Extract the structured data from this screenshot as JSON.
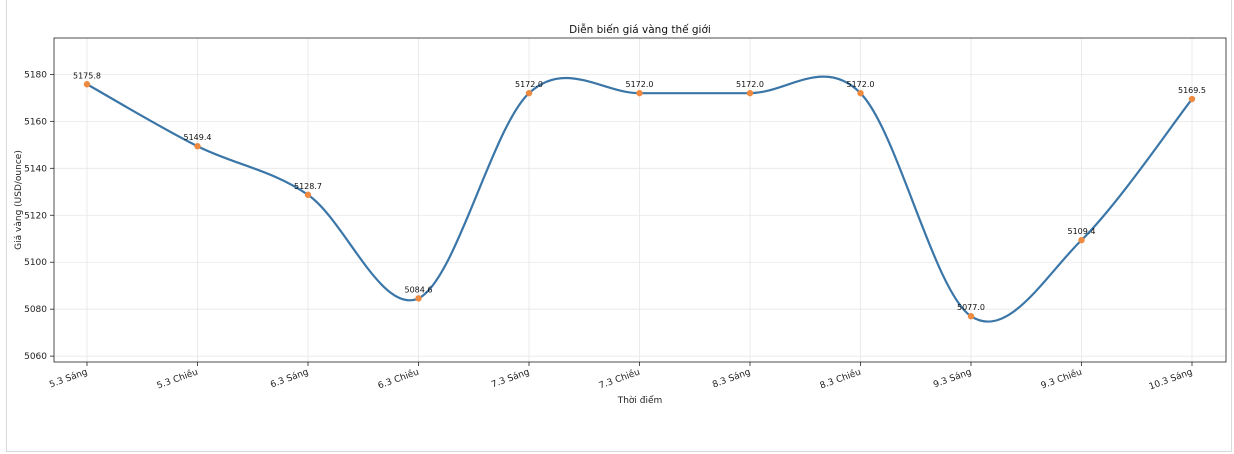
{
  "chart_data": {
    "type": "line",
    "title": "Diễn biến giá vàng thế giới",
    "xlabel": "Thời điểm",
    "ylabel": "Giá vàng (USD/ounce)",
    "categories": [
      "5.3 Sáng",
      "5.3 Chiều",
      "6.3 Sáng",
      "6.3 Chiều",
      "7.3 Sáng",
      "7.3 Chiều",
      "8.3 Sáng",
      "8.3 Chiều",
      "9.3 Sáng",
      "9.3 Chiều",
      "10.3 Sáng"
    ],
    "values": [
      5175.8,
      5149.4,
      5128.7,
      5084.6,
      5172.0,
      5172.0,
      5172.0,
      5172.0,
      5077.0,
      5109.4,
      5169.5
    ],
    "data_labels": [
      "5175.8",
      "5149.4",
      "5128.7",
      "5084.6",
      "5172.0",
      "5172.0",
      "5172.0",
      "5172.0",
      "5077.0",
      "5109.4",
      "5169.5"
    ],
    "yticks": [
      5060,
      5080,
      5100,
      5120,
      5140,
      5160,
      5180
    ],
    "ylim": [
      5057.5,
      5195.5
    ],
    "grid": true,
    "colors": {
      "line": "#3b76a8",
      "marker": "#ed8a3f"
    }
  }
}
